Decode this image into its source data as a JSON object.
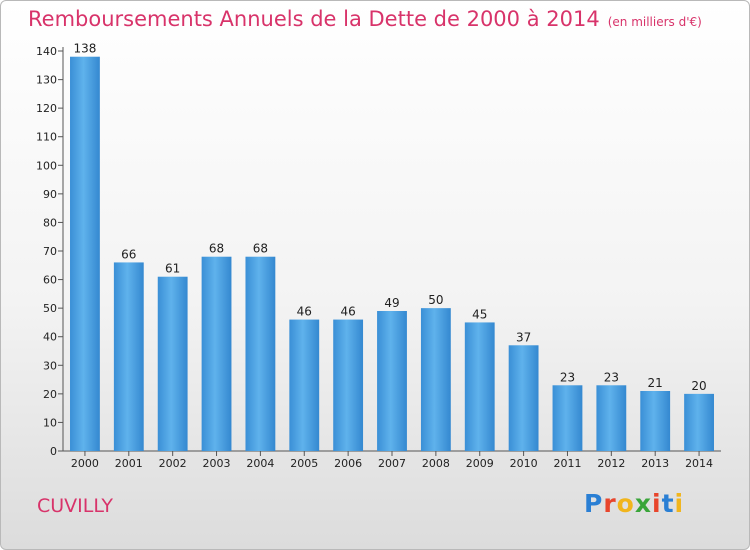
{
  "title": "Remboursements Annuels de la Dette de 2000 à 2014",
  "subtitle": "(en milliers d'€)",
  "commune": "CUVILLY",
  "logo": {
    "text": "Proxiti",
    "colors": [
      "#2a7fd4",
      "#e8452c",
      "#f1b51c",
      "#3aa53a",
      "#e8452c",
      "#2a7fd4",
      "#f1b51c"
    ]
  },
  "colors": {
    "bar": "#4a9fe0",
    "title": "#d8336a"
  },
  "chart_data": {
    "type": "bar",
    "categories": [
      "2000",
      "2001",
      "2002",
      "2003",
      "2004",
      "2005",
      "2006",
      "2007",
      "2008",
      "2009",
      "2010",
      "2011",
      "2012",
      "2013",
      "2014"
    ],
    "values": [
      138,
      66,
      61,
      68,
      68,
      46,
      46,
      49,
      50,
      45,
      37,
      23,
      23,
      21,
      20
    ],
    "ylim": [
      0,
      140
    ],
    "yticks": [
      0,
      10,
      20,
      30,
      40,
      50,
      60,
      70,
      80,
      90,
      100,
      110,
      120,
      130,
      140
    ],
    "xlabel": "",
    "ylabel": "",
    "grid": false
  }
}
